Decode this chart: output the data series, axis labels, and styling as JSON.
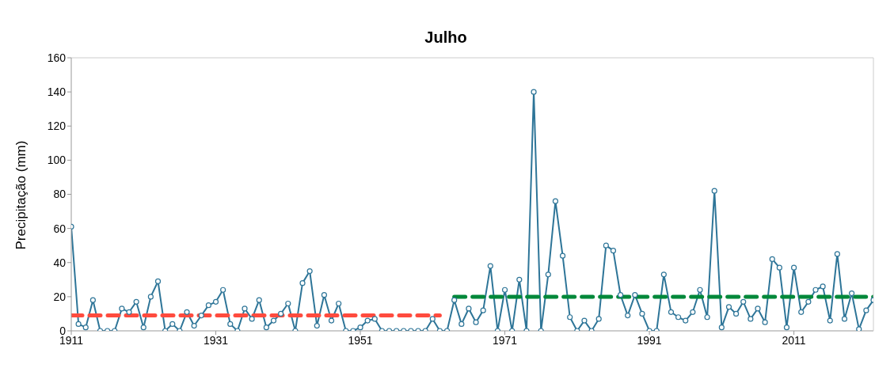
{
  "chart_data": {
    "type": "line",
    "title": "Julho",
    "ylabel": "Precipitação (mm)",
    "xlim": [
      1911,
      2022
    ],
    "xticks": [
      1911,
      1931,
      1951,
      1971,
      1991,
      2011
    ],
    "ylim": [
      0,
      160
    ],
    "yticks": [
      0,
      20,
      40,
      60,
      80,
      100,
      120,
      140,
      160
    ],
    "grid": false,
    "series": [
      {
        "color": "#2e7598",
        "marker": "circle",
        "line_style": "solid",
        "x": [
          1911,
          1912,
          1913,
          1914,
          1915,
          1916,
          1917,
          1918,
          1919,
          1920,
          1921,
          1922,
          1923,
          1924,
          1925,
          1926,
          1927,
          1928,
          1929,
          1930,
          1931,
          1932,
          1933,
          1934,
          1935,
          1936,
          1937,
          1938,
          1939,
          1940,
          1941,
          1942,
          1943,
          1944,
          1945,
          1946,
          1947,
          1948,
          1949,
          1950,
          1951,
          1952,
          1953,
          1954,
          1955,
          1956,
          1957,
          1958,
          1959,
          1960,
          1961,
          1962,
          1963,
          1964,
          1965,
          1966,
          1967,
          1968,
          1969,
          1970,
          1971,
          1972,
          1973,
          1974,
          1975,
          1976,
          1977,
          1978,
          1979,
          1980,
          1981,
          1982,
          1983,
          1984,
          1985,
          1986,
          1987,
          1988,
          1989,
          1990,
          1991,
          1992,
          1993,
          1994,
          1995,
          1996,
          1997,
          1998,
          1999,
          2000,
          2001,
          2002,
          2003,
          2004,
          2005,
          2006,
          2007,
          2008,
          2009,
          2010,
          2011,
          2012,
          2013,
          2014,
          2015,
          2016,
          2017,
          2018,
          2019,
          2020,
          2021,
          2022
        ],
        "values": [
          61,
          4,
          2,
          18,
          0,
          0,
          0,
          13,
          11,
          17,
          2,
          20,
          29,
          0,
          4,
          0,
          11,
          3,
          9,
          15,
          17,
          24,
          4,
          0,
          13,
          7,
          18,
          2,
          6,
          10,
          16,
          0,
          28,
          35,
          3,
          21,
          6,
          16,
          0,
          0,
          2,
          6,
          7,
          0,
          0,
          0,
          0,
          0,
          0,
          0,
          7,
          0,
          0,
          18,
          4,
          13,
          5,
          12,
          38,
          0,
          24,
          0,
          30,
          0,
          140,
          0,
          33,
          76,
          44,
          8,
          0,
          6,
          0,
          7,
          50,
          47,
          21,
          9,
          21,
          10,
          0,
          0,
          33,
          11,
          8,
          6,
          11,
          24,
          8,
          82,
          2,
          14,
          10,
          17,
          7,
          13,
          5,
          42,
          37,
          2,
          37,
          11,
          17,
          24,
          26,
          6,
          45,
          7,
          22,
          1,
          12,
          18
        ]
      },
      {
        "color": "#ff4b3e",
        "marker": "none",
        "line_style": "dashed",
        "x": [
          1911,
          1962
        ],
        "values": [
          9,
          9
        ]
      },
      {
        "color": "#00883a",
        "marker": "none",
        "line_style": "dashed",
        "x": [
          1964,
          2022
        ],
        "values": [
          20,
          20
        ]
      }
    ]
  }
}
